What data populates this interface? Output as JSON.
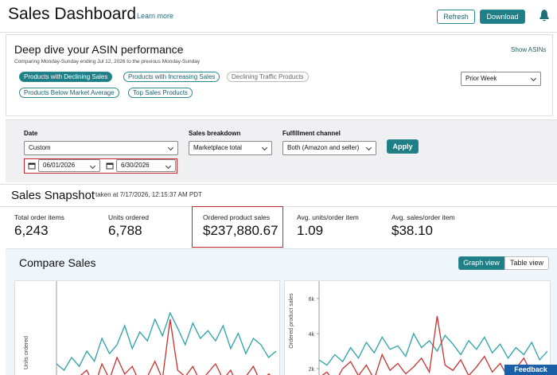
{
  "header": {
    "title": "Sales Dashboard",
    "learn_more": "Learn more",
    "buttons": [
      "Refresh",
      "Download"
    ]
  },
  "deep_dive": {
    "title": "Deep dive your ASIN performance",
    "subtitle": "Comparing Monday-Sunday ending Jul 12, 2026 to the previous Monday-Sunday",
    "show_asins": "Show ASINs",
    "period": "Prior Week",
    "filters": [
      "Products with Declining Sales",
      "Products with Increasing Sales",
      "Declining Traffic Products",
      "Products Below Market Average",
      "Top Sales Products"
    ]
  },
  "filters": {
    "date_label": "Date",
    "date_mode": "Custom",
    "start_date": "06/01/2026",
    "end_date": "6/30/2026",
    "breakdown_label": "Sales breakdown",
    "breakdown": "Marketplace total",
    "channel_label": "Fulfillment channel",
    "channel": "Both (Amazon and seller)",
    "apply": "Apply"
  },
  "snapshot": {
    "title": "Sales Snapshot",
    "taken_at": "taken at 7/17/2026, 12:15:37 AM PDT",
    "metrics": [
      {
        "label": "Total order items",
        "value": "6,243"
      },
      {
        "label": "Units ordered",
        "value": "6,788"
      },
      {
        "label": "Ordered product sales",
        "value": "$237,880.67"
      },
      {
        "label": "Avg. units/order item",
        "value": "1.09"
      },
      {
        "label": "Avg. sales/order item",
        "value": "$38.10"
      }
    ]
  },
  "compare": {
    "title": "Compare Sales",
    "views": [
      "Graph view",
      "Table view"
    ],
    "charts": [
      {
        "type": "line",
        "ylabel": "Units ordered",
        "ylim": [
          0,
          100
        ],
        "series": [
          {
            "color": "#2aa3a8",
            "values": [
              40,
              35,
              45,
              38,
              50,
              42,
              60,
              48,
              55,
              70,
              52,
              65,
              58,
              75,
              62,
              80,
              68,
              55,
              72,
              60,
              66,
              58,
              70,
              52,
              64,
              48,
              60,
              55,
              45,
              50
            ]
          },
          {
            "color": "#c7322f",
            "values": [
              20,
              25,
              18,
              30,
              35,
              22,
              40,
              28,
              45,
              32,
              38,
              25,
              30,
              42,
              28,
              75,
              35,
              30,
              38,
              26,
              33,
              40,
              28,
              35,
              22,
              30,
              38,
              25,
              32,
              28
            ]
          }
        ]
      },
      {
        "type": "line",
        "ylabel": "Ordered product sales",
        "ylim": [
          0,
          6500
        ],
        "yticks": [
          {
            "value": 2000,
            "label": "2k"
          },
          {
            "value": 4000,
            "label": "4k"
          },
          {
            "value": 6000,
            "label": "6k"
          }
        ],
        "series": [
          {
            "color": "#2aa3a8",
            "values": [
              2500,
              2200,
              2800,
              2400,
              3200,
              2600,
              3500,
              2900,
              3800,
              3100,
              3300,
              2700,
              4000,
              3200,
              3600,
              3000,
              3900,
              3400,
              2800,
              3600,
              3100,
              3800,
              2900,
              3400,
              2600,
              3200,
              2800,
              3500,
              2500,
              3000
            ]
          },
          {
            "color": "#c7322f",
            "values": [
              1500,
              1800,
              1200,
              2000,
              2400,
              1600,
              2200,
              1400,
              2800,
              1900,
              2300,
              1700,
              2100,
              2600,
              1800,
              5000,
              2200,
              1900,
              2500,
              1600,
              2100,
              2700,
              1800,
              2300,
              1500,
              2000,
              2600,
              1700,
              2200,
              1900
            ]
          }
        ]
      }
    ]
  },
  "feedback": "Feedback"
}
